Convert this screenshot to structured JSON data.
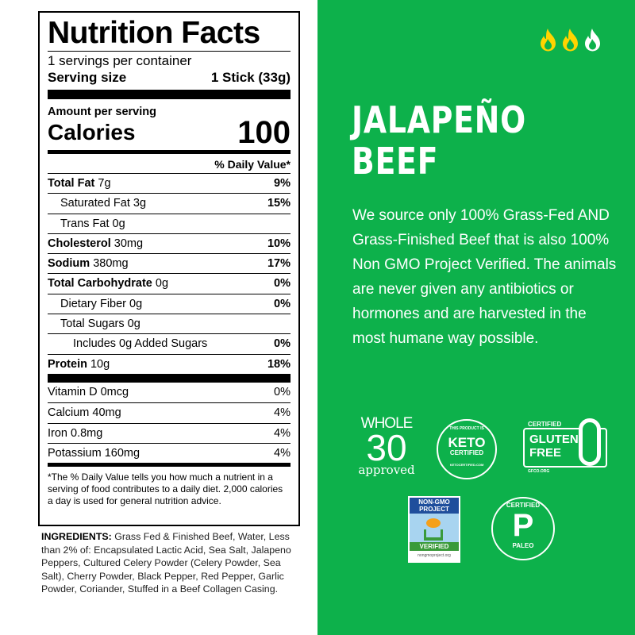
{
  "nutrition": {
    "title": "Nutrition Facts",
    "servings": "1 servings per container",
    "serving_size_label": "Serving size",
    "serving_size_value": "1 Stick (33g)",
    "amount_per_serving": "Amount per serving",
    "calories_label": "Calories",
    "calories_value": "100",
    "dv_header": "% Daily Value*",
    "rows": [
      {
        "name": "Total Fat",
        "amount": "7g",
        "dv": "9%"
      },
      {
        "name": "Saturated Fat",
        "amount": "3g",
        "dv": "15%"
      },
      {
        "name": "Trans Fat",
        "amount": "0g",
        "dv": ""
      },
      {
        "name": "Cholesterol",
        "amount": "30mg",
        "dv": "10%"
      },
      {
        "name": "Sodium",
        "amount": "380mg",
        "dv": "17%"
      },
      {
        "name": "Total Carbohydrate",
        "amount": "0g",
        "dv": "0%"
      },
      {
        "name": "Dietary Fiber",
        "amount": "0g",
        "dv": "0%"
      },
      {
        "name": "Total Sugars",
        "amount": "0g",
        "dv": ""
      },
      {
        "name": "Includes 0g Added Sugars",
        "amount": "",
        "dv": "0%"
      },
      {
        "name": "Protein",
        "amount": "10g",
        "dv": "18%"
      }
    ],
    "vitamins": [
      {
        "name": "Vitamin D 0mcg",
        "dv": "0%"
      },
      {
        "name": "Calcium 40mg",
        "dv": "4%"
      },
      {
        "name": "Iron 0.8mg",
        "dv": "4%"
      },
      {
        "name": "Potassium 160mg",
        "dv": "4%"
      }
    ],
    "footnote": "*The % Daily Value tells you how much a nutrient in a serving of food contributes to a daily diet. 2,000 calories a day is used for general nutrition advice."
  },
  "ingredients": {
    "label": "INGREDIENTS:",
    "text": " Grass Fed & Finished Beef, Water, Less than 2% of: Encapsulated Lactic Acid, Sea Salt, Jalapeno Peppers, Cultured Celery Powder (Celery Powder, Sea Salt), Cherry Powder, Black Pepper, Red Pepper, Garlic Powder, Coriander, Stuffed in a Beef Collagen Casing."
  },
  "product": {
    "title_line1": "JALAPEÑO",
    "title_line2": "BEEF",
    "description": "We source only 100% Grass-Fed AND Grass-Finished Beef that is also 100% Non GMO Project Verified. The animals are never given any antibiotics or hormones and are harvested in the most humane way possible.",
    "heat_level": 2,
    "heat_max": 3
  },
  "badges": {
    "whole30": {
      "line1": "WHOLE",
      "line2": "30",
      "line3": "approved"
    },
    "keto": {
      "top": "THIS PRODUCT IS",
      "main1": "KETO",
      "main2": "CERTIFIED",
      "bottom": "KETOCERTIFIED.COM"
    },
    "gluten": {
      "top": "CERTIFIED",
      "main1": "GLUTEN",
      "main2": "FREE",
      "bottom": "GFCO.ORG"
    },
    "nongmo": {
      "line1": "NON-GMO",
      "line2": "PROJECT",
      "verified": "VERIFIED",
      "url": "nongmoproject.org"
    },
    "paleo": {
      "top": "CERTIFIED",
      "letter": "P",
      "bottom": "PALEO"
    }
  },
  "colors": {
    "background": "#0db14b",
    "flame_active": "#ffd400",
    "flame_inactive": "#ffffff"
  }
}
